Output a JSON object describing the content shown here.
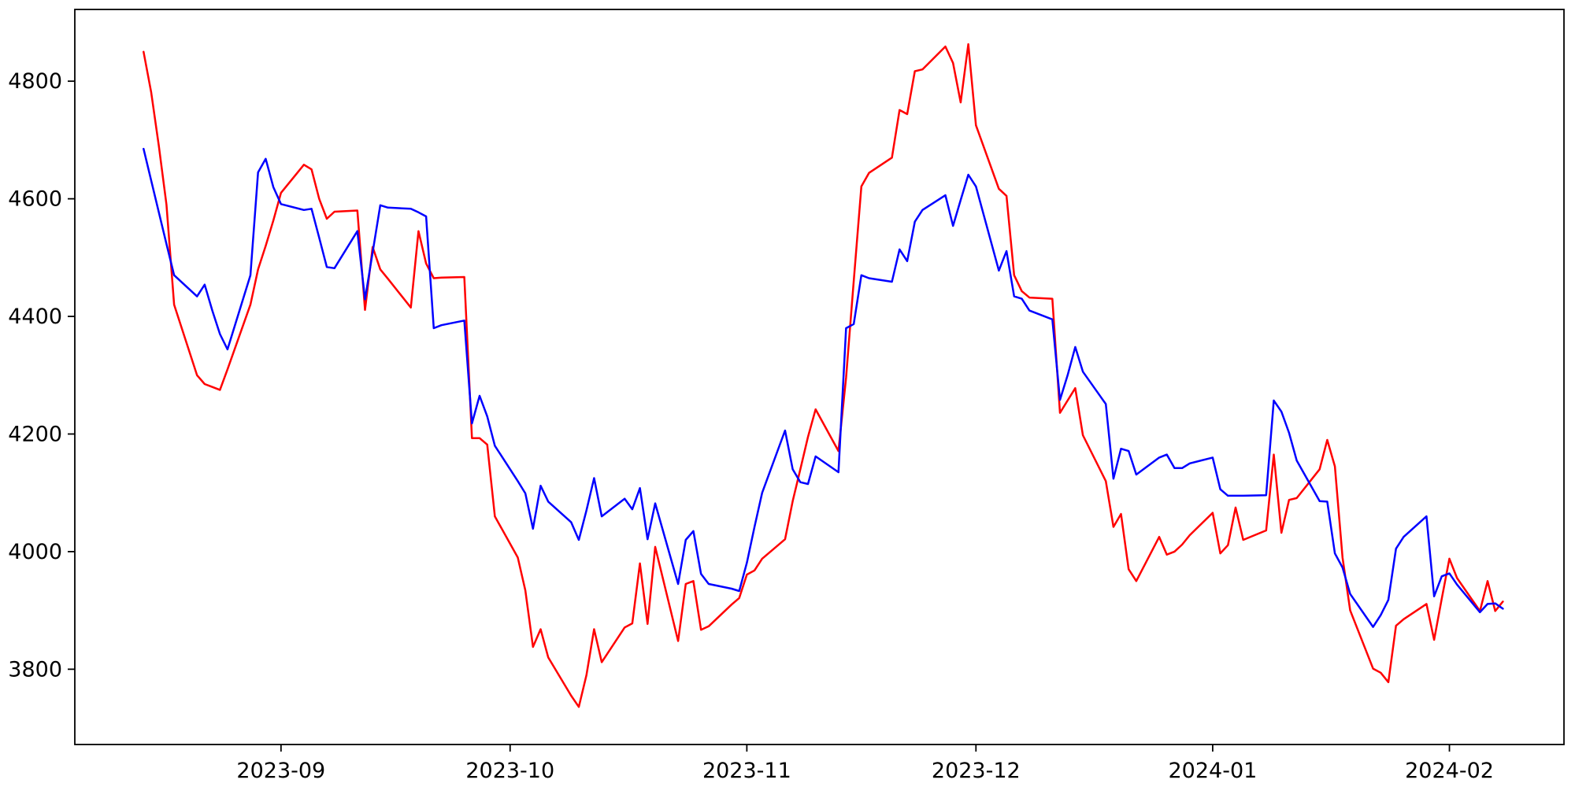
{
  "chart_data": {
    "type": "line",
    "title": "",
    "xlabel": "",
    "ylabel": "",
    "grid": false,
    "legend": "none",
    "background_color": "#ffffff",
    "frame_color": "#000000",
    "x_domain": [
      "2023-08-05",
      "2024-02-16"
    ],
    "y_domain": [
      3672,
      4922
    ],
    "y_ticks": [
      3800,
      4000,
      4200,
      4400,
      4600,
      4800
    ],
    "y_tick_labels": [
      "3800",
      "4000",
      "4200",
      "4400",
      "4600",
      "4800"
    ],
    "x_tick_dates": [
      "2023-09-01",
      "2023-10-01",
      "2023-11-01",
      "2023-12-01",
      "2024-01-01",
      "2024-02-01"
    ],
    "x_tick_labels": [
      "2023-09",
      "2023-10",
      "2023-11",
      "2023-12",
      "2024-01",
      "2024-02"
    ],
    "x": [
      "2023-08-14",
      "2023-08-15",
      "2023-08-16",
      "2023-08-17",
      "2023-08-18",
      "2023-08-21",
      "2023-08-22",
      "2023-08-23",
      "2023-08-24",
      "2023-08-25",
      "2023-08-28",
      "2023-08-29",
      "2023-08-30",
      "2023-08-31",
      "2023-09-01",
      "2023-09-04",
      "2023-09-05",
      "2023-09-06",
      "2023-09-07",
      "2023-09-08",
      "2023-09-11",
      "2023-09-12",
      "2023-09-13",
      "2023-09-14",
      "2023-09-15",
      "2023-09-18",
      "2023-09-19",
      "2023-09-20",
      "2023-09-21",
      "2023-09-22",
      "2023-09-25",
      "2023-09-26",
      "2023-09-27",
      "2023-09-28",
      "2023-09-29",
      "2023-10-02",
      "2023-10-03",
      "2023-10-04",
      "2023-10-05",
      "2023-10-06",
      "2023-10-09",
      "2023-10-10",
      "2023-10-11",
      "2023-10-12",
      "2023-10-13",
      "2023-10-16",
      "2023-10-17",
      "2023-10-18",
      "2023-10-19",
      "2023-10-20",
      "2023-10-23",
      "2023-10-24",
      "2023-10-25",
      "2023-10-26",
      "2023-10-27",
      "2023-10-30",
      "2023-10-31",
      "2023-11-01",
      "2023-11-02",
      "2023-11-03",
      "2023-11-06",
      "2023-11-07",
      "2023-11-08",
      "2023-11-09",
      "2023-11-10",
      "2023-11-13",
      "2023-11-14",
      "2023-11-15",
      "2023-11-16",
      "2023-11-17",
      "2023-11-20",
      "2023-11-21",
      "2023-11-22",
      "2023-11-23",
      "2023-11-24",
      "2023-11-27",
      "2023-11-28",
      "2023-11-29",
      "2023-11-30",
      "2023-12-01",
      "2023-12-04",
      "2023-12-05",
      "2023-12-06",
      "2023-12-07",
      "2023-12-08",
      "2023-12-11",
      "2023-12-12",
      "2023-12-13",
      "2023-12-14",
      "2023-12-15",
      "2023-12-18",
      "2023-12-19",
      "2023-12-20",
      "2023-12-21",
      "2023-12-22",
      "2023-12-25",
      "2023-12-26",
      "2023-12-27",
      "2023-12-28",
      "2023-12-29",
      "2024-01-01",
      "2024-01-02",
      "2024-01-03",
      "2024-01-04",
      "2024-01-05",
      "2024-01-08",
      "2024-01-09",
      "2024-01-10",
      "2024-01-11",
      "2024-01-12",
      "2024-01-15",
      "2024-01-16",
      "2024-01-17",
      "2024-01-18",
      "2024-01-19",
      "2024-01-22",
      "2024-01-23",
      "2024-01-24",
      "2024-01-25",
      "2024-01-26",
      "2024-01-29",
      "2024-01-30",
      "2024-01-31",
      "2024-02-01",
      "2024-02-02",
      "2024-02-05",
      "2024-02-06",
      "2024-02-07",
      "2024-02-08"
    ],
    "series": [
      {
        "name": "red-series",
        "color": "#ff0000",
        "values": [
          4850,
          4781,
          4690,
          4590,
          4420,
          4300,
          4285,
          4280,
          4275,
          4310,
          4420,
          4480,
          4520,
          4563,
          4610,
          4658,
          4650,
          4600,
          4566,
          4578,
          4580,
          4411,
          4518,
          4480,
          4464,
          4415,
          4545,
          4490,
          4465,
          4466,
          4467,
          4193,
          4193,
          4182,
          4060,
          3990,
          3934,
          3838,
          3868,
          3820,
          3755,
          3736,
          3790,
          3868,
          3812,
          3871,
          3878,
          3980,
          3877,
          4008,
          3848,
          3945,
          3950,
          3867,
          3873,
          3910,
          3921,
          3961,
          3968,
          3988,
          4021,
          4086,
          4140,
          4195,
          4242,
          4171,
          4296,
          4460,
          4621,
          4644,
          4670,
          4751,
          4744,
          4817,
          4820,
          4859,
          4831,
          4764,
          4863,
          4725,
          4617,
          4605,
          4470,
          4443,
          4432,
          4430,
          4236,
          4257,
          4278,
          4198,
          4120,
          4042,
          4064,
          3970,
          3950,
          4025,
          3995,
          4000,
          4012,
          4028,
          4066,
          3997,
          4011,
          4075,
          4020,
          4036,
          4165,
          4032,
          4088,
          4091,
          4140,
          4190,
          4145,
          3990,
          3900,
          3801,
          3794,
          3778,
          3874,
          3885,
          3911,
          3850,
          3920,
          3988,
          3955,
          3899,
          3950,
          3899,
          3915
        ]
      },
      {
        "name": "blue-series",
        "color": "#0000ff",
        "values": [
          4685,
          4631,
          4577,
          4523,
          4470,
          4434,
          4454,
          4410,
          4370,
          4344,
          4470,
          4645,
          4668,
          4620,
          4591,
          4581,
          4583,
          4534,
          4484,
          4482,
          4545,
          4429,
          4509,
          4589,
          4585,
          4583,
          4577,
          4570,
          4380,
          4385,
          4393,
          4218,
          4265,
          4230,
          4180,
          4120,
          4099,
          4039,
          4112,
          4085,
          4050,
          4020,
          4070,
          4125,
          4060,
          4090,
          4072,
          4108,
          4021,
          4082,
          3945,
          4020,
          4035,
          3962,
          3945,
          3937,
          3933,
          3981,
          4042,
          4100,
          4206,
          4140,
          4118,
          4115,
          4162,
          4135,
          4380,
          4387,
          4470,
          4465,
          4459,
          4514,
          4494,
          4561,
          4581,
          4606,
          4554,
          4598,
          4641,
          4621,
          4478,
          4511,
          4434,
          4430,
          4410,
          4395,
          4258,
          4300,
          4348,
          4306,
          4251,
          4124,
          4175,
          4171,
          4131,
          4160,
          4165,
          4142,
          4142,
          4150,
          4160,
          4106,
          4095,
          4095,
          4095,
          4096,
          4257,
          4238,
          4202,
          4155,
          4086,
          4085,
          3997,
          3973,
          3928,
          3872,
          3892,
          3918,
          4005,
          4025,
          4060,
          3924,
          3958,
          3963,
          3944,
          3897,
          3911,
          3912,
          3903
        ]
      }
    ]
  }
}
